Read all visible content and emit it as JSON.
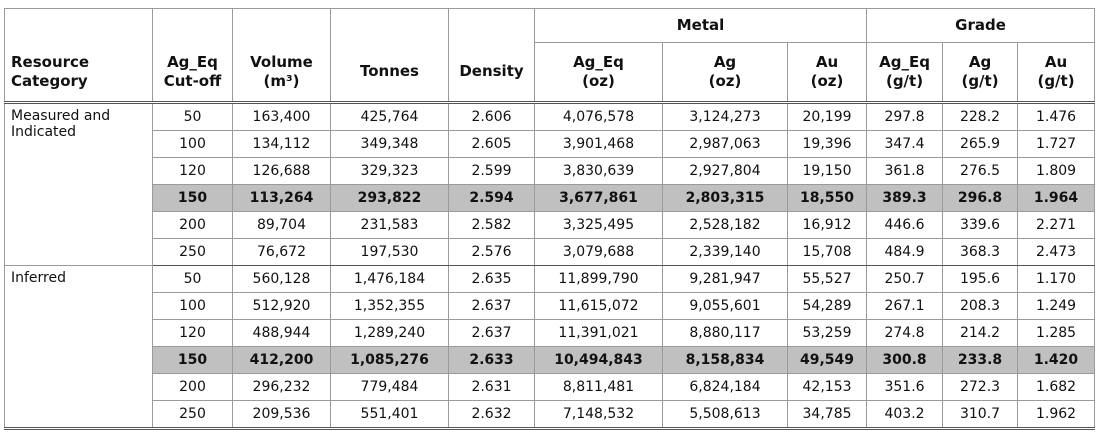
{
  "table": {
    "header": {
      "groups": [
        "Metal",
        "Grade"
      ],
      "columns": [
        "Resource\nCategory",
        "Ag_Eq\nCut-off",
        "Volume\n(m³)",
        "Tonnes",
        "Density",
        "Ag_Eq\n(oz)",
        "Ag\n(oz)",
        "Au\n(oz)",
        "Ag_Eq\n(g/t)",
        "Ag\n(g/t)",
        "Au\n(g/t)"
      ]
    },
    "groups": [
      {
        "category": "Measured and\nIndicated",
        "rows": [
          {
            "cells": [
              "50",
              "163,400",
              "425,764",
              "2.606",
              "4,076,578",
              "3,124,273",
              "20,199",
              "297.8",
              "228.2",
              "1.476"
            ]
          },
          {
            "cells": [
              "100",
              "134,112",
              "349,348",
              "2.605",
              "3,901,468",
              "2,987,063",
              "19,396",
              "347.4",
              "265.9",
              "1.727"
            ]
          },
          {
            "cells": [
              "120",
              "126,688",
              "329,323",
              "2.599",
              "3,830,639",
              "2,927,804",
              "19,150",
              "361.8",
              "276.5",
              "1.809"
            ]
          },
          {
            "cells": [
              "150",
              "113,264",
              "293,822",
              "2.594",
              "3,677,861",
              "2,803,315",
              "18,550",
              "389.3",
              "296.8",
              "1.964"
            ],
            "highlight": true
          },
          {
            "cells": [
              "200",
              "89,704",
              "231,583",
              "2.582",
              "3,325,495",
              "2,528,182",
              "16,912",
              "446.6",
              "339.6",
              "2.271"
            ]
          },
          {
            "cells": [
              "250",
              "76,672",
              "197,530",
              "2.576",
              "3,079,688",
              "2,339,140",
              "15,708",
              "484.9",
              "368.3",
              "2.473"
            ]
          }
        ]
      },
      {
        "category": "Inferred",
        "rows": [
          {
            "cells": [
              "50",
              "560,128",
              "1,476,184",
              "2.635",
              "11,899,790",
              "9,281,947",
              "55,527",
              "250.7",
              "195.6",
              "1.170"
            ]
          },
          {
            "cells": [
              "100",
              "512,920",
              "1,352,355",
              "2.637",
              "11,615,072",
              "9,055,601",
              "54,289",
              "267.1",
              "208.3",
              "1.249"
            ]
          },
          {
            "cells": [
              "120",
              "488,944",
              "1,289,240",
              "2.637",
              "11,391,021",
              "8,880,117",
              "53,259",
              "274.8",
              "214.2",
              "1.285"
            ]
          },
          {
            "cells": [
              "150",
              "412,200",
              "1,085,276",
              "2.633",
              "10,494,843",
              "8,158,834",
              "49,549",
              "300.8",
              "233.8",
              "1.420"
            ],
            "highlight": true
          },
          {
            "cells": [
              "200",
              "296,232",
              "779,484",
              "2.631",
              "8,811,481",
              "6,824,184",
              "42,153",
              "351.6",
              "272.3",
              "1.682"
            ]
          },
          {
            "cells": [
              "250",
              "209,536",
              "551,401",
              "2.632",
              "7,148,532",
              "5,508,613",
              "34,785",
              "403.2",
              "310.7",
              "1.962"
            ]
          }
        ]
      }
    ]
  }
}
